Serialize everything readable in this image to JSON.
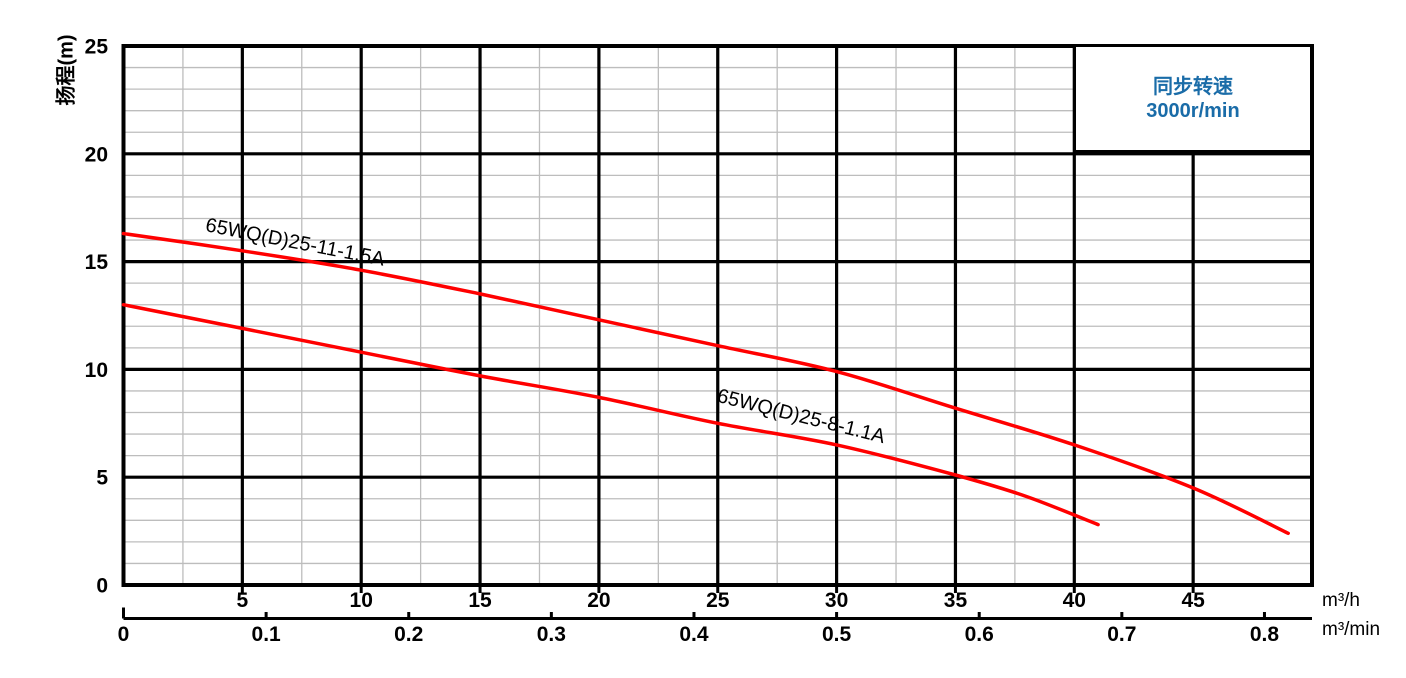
{
  "chart": {
    "y_axis_title": "扬程(m)",
    "unit_primary": "m³/h",
    "unit_secondary": "m³/min",
    "legend": {
      "line1": "同步转速",
      "line2": "3000r/min",
      "text_color": "#1a6ca8"
    },
    "colors": {
      "curve": "#ff0000",
      "major_grid": "#000000",
      "minor_grid": "#bdbdbd",
      "border": "#000000",
      "text": "#000000"
    }
  },
  "chart_data": {
    "type": "line",
    "title": "",
    "ylabel": "扬程(m)",
    "xlabel_primary": "m³/h",
    "xlabel_secondary": "m³/min",
    "x_axis": {
      "range_m3h": [
        0,
        50
      ],
      "major_ticks": [
        5,
        10,
        15,
        20,
        25,
        30,
        35,
        40,
        45
      ],
      "major_tick_labels": [
        "5",
        "10",
        "15",
        "20",
        "25",
        "30",
        "35",
        "40",
        "45"
      ],
      "minor_ticks": [
        2.5,
        7.5,
        12.5,
        17.5,
        22.5,
        27.5,
        32.5,
        37.5
      ]
    },
    "secondary_x_axis": {
      "unit": "m³/min",
      "tick_values_m3min": [
        0,
        0.1,
        0.2,
        0.3,
        0.4,
        0.5,
        0.6,
        0.7,
        0.8
      ],
      "tick_labels": [
        "0",
        "0.1",
        "0.2",
        "0.3",
        "0.4",
        "0.5",
        "0.6",
        "0.7",
        "0.8"
      ],
      "m3h_per_m3min": 60
    },
    "y_axis": {
      "range_m": [
        0,
        25
      ],
      "major_ticks": [
        0,
        5,
        10,
        15,
        20,
        25
      ],
      "major_tick_labels": [
        "0",
        "5",
        "10",
        "15",
        "20",
        "25"
      ],
      "minor_step": 1
    },
    "grid": {
      "major": true,
      "minor": true
    },
    "legend_text": [
      "同步转速",
      "3000r/min"
    ],
    "series": [
      {
        "name": "65WQ(D)25-11-1.5A",
        "color": "#ff0000",
        "x": [
          0,
          5,
          10,
          15,
          20,
          25,
          30,
          35,
          40,
          45,
          49
        ],
        "y": [
          16.3,
          15.5,
          14.6,
          13.5,
          12.3,
          11.1,
          9.9,
          8.2,
          6.5,
          4.5,
          2.4
        ],
        "label_pos": {
          "x": 7.2,
          "y": 15.85,
          "angle_deg": 11
        }
      },
      {
        "name": "65WQ(D)25-8-1.1A",
        "color": "#ff0000",
        "x": [
          0,
          5,
          10,
          15,
          20,
          25,
          30,
          35,
          38,
          41
        ],
        "y": [
          13.0,
          11.9,
          10.8,
          9.7,
          8.7,
          7.5,
          6.5,
          5.1,
          4.1,
          2.8
        ],
        "label_pos": {
          "x": 28.5,
          "y": 7.8,
          "angle_deg": 14
        }
      }
    ]
  }
}
